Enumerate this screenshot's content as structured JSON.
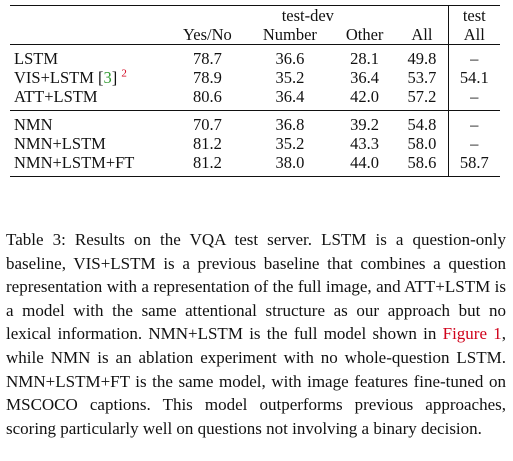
{
  "table": {
    "group_headers": {
      "test_dev": "test-dev",
      "test": "test"
    },
    "column_headers": [
      "Yes/No",
      "Number",
      "Other",
      "All",
      "All"
    ],
    "rows_block1": [
      {
        "method": "LSTM",
        "yes_no": "78.7",
        "number": "36.6",
        "other": "28.1",
        "all_dev": "49.8",
        "all_test": "–"
      },
      {
        "method": "VIS+LSTM [",
        "cite": "3",
        "method_after": "]",
        "footnote": "2",
        "yes_no": "78.9",
        "number": "35.2",
        "other": "36.4",
        "all_dev": "53.7",
        "all_test": "54.1"
      },
      {
        "method": "ATT+LSTM",
        "yes_no": "80.6",
        "number": "36.4",
        "other": "42.0",
        "all_dev": "57.2",
        "all_test": "–"
      }
    ],
    "rows_block2": [
      {
        "method": "NMN",
        "yes_no": "70.7",
        "number": "36.8",
        "other": "39.2",
        "all_dev": "54.8",
        "all_test": "–"
      },
      {
        "method": "NMN+LSTM",
        "yes_no": "81.2",
        "number": "35.2",
        "other": "43.3",
        "all_dev": "58.0",
        "all_test": "–"
      },
      {
        "method": "NMN+LSTM+FT",
        "yes_no": "81.2",
        "number": "38.0",
        "other": "44.0",
        "all_dev": "58.6",
        "all_test": "58.7"
      }
    ]
  },
  "caption": {
    "part1": "Table 3: Results on the VQA test server. LSTM is a question-only baseline, VIS+LSTM is a previous baseline that combines a question representation with a representation of the full image, and ATT+LSTM is a model with the same attentional structure as our approach but no lexical information. NMN+LSTM is the full model shown in ",
    "figure_link": "Figure 1",
    "part2": ", while NMN is an ablation experiment with no whole-question LSTM. NMN+LSTM+FT is the same model, with image features fine-tuned on MSCOCO captions. This model outperforms previous approaches, scoring particularly well on questions not involving a binary decision."
  }
}
